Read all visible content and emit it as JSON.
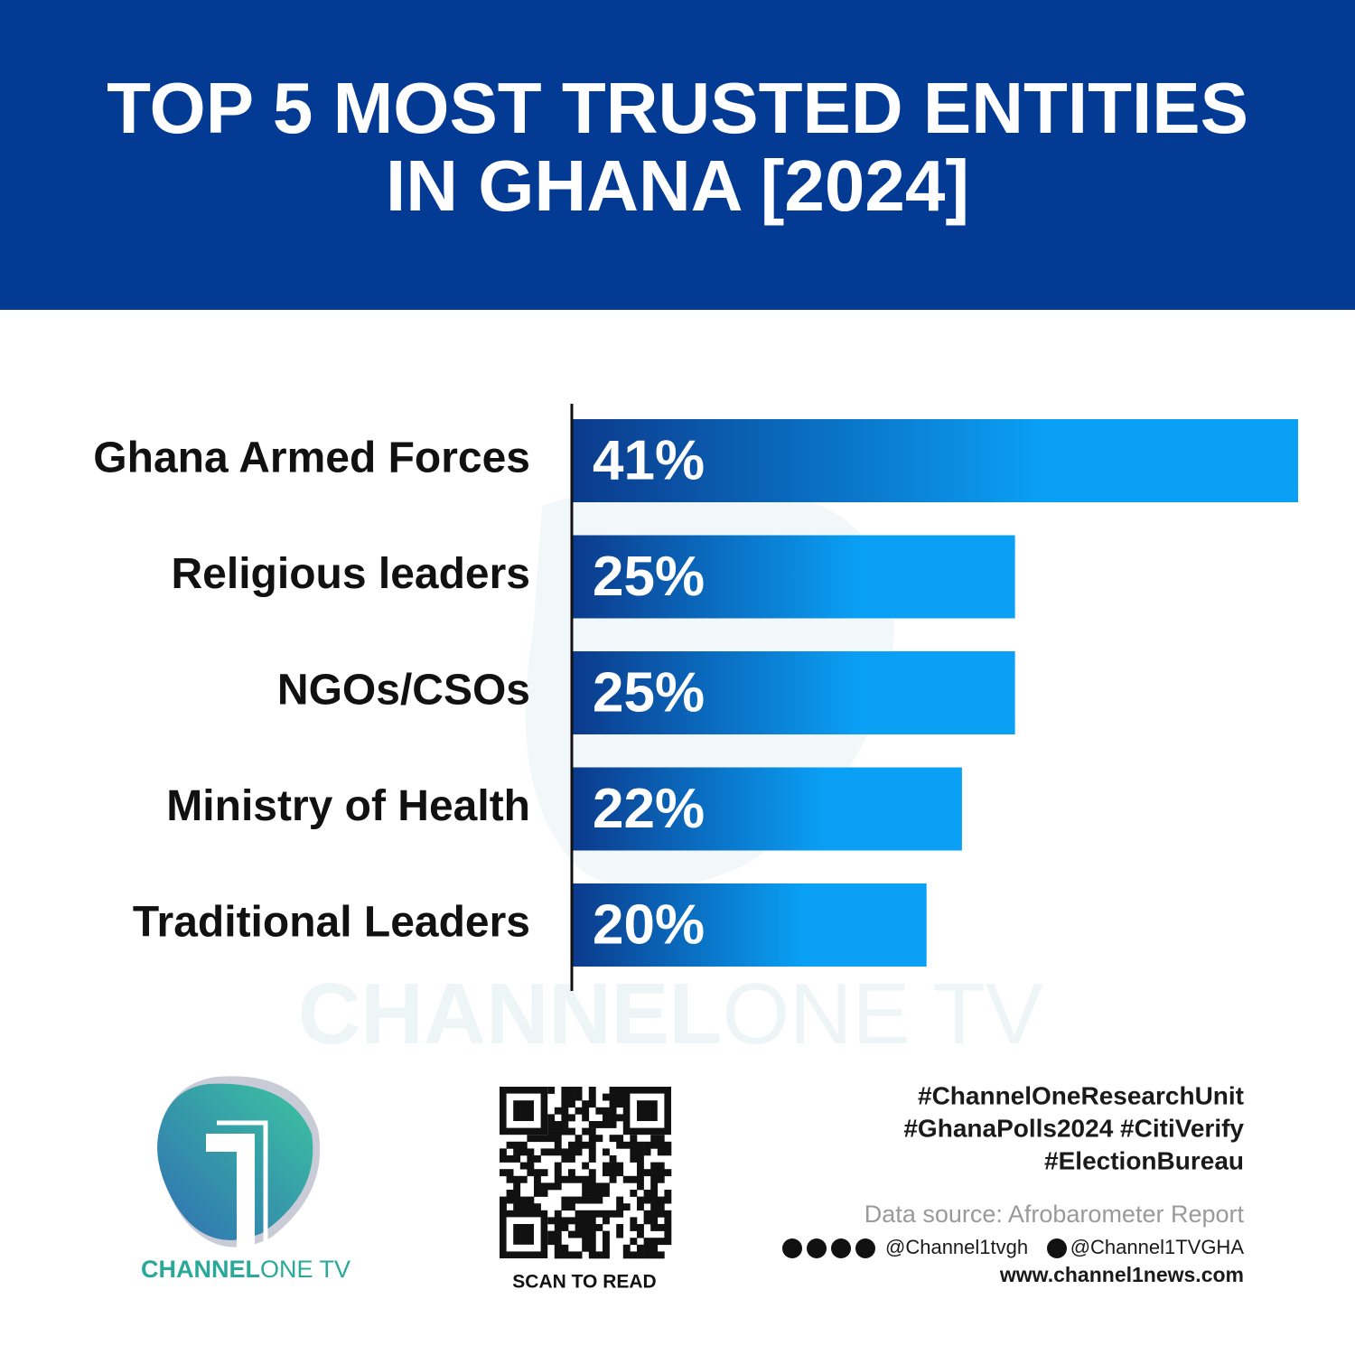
{
  "chart_data": {
    "type": "bar",
    "orientation": "horizontal",
    "title": [
      "TOP 5 MOST TRUSTED ENTITIES",
      "IN GHANA [2024]"
    ],
    "categories": [
      "Ghana Armed Forces",
      "Religious leaders",
      "NGOs/CSOs",
      "Ministry of Health",
      "Traditional Leaders"
    ],
    "values": [
      41,
      25,
      25,
      22,
      20
    ],
    "value_labels": [
      "41%",
      "25%",
      "25%",
      "22%",
      "20%"
    ],
    "color": "#0aa0f5"
  },
  "logo": {
    "bold": "CHANNEL",
    "light": "ONE TV"
  },
  "footer": {
    "hashtags": [
      "#ChannelOneResearchUnit",
      "#GhanaPolls2024 #CitiVerify",
      "#ElectionBureau"
    ],
    "data_source": "Data source: Afrobarometer Report",
    "social_handle": "@Channel1tvgh",
    "x_handle": "@Channel1TVGHA",
    "website": "www.channel1news.com",
    "qr_caption": "SCAN TO READ"
  }
}
